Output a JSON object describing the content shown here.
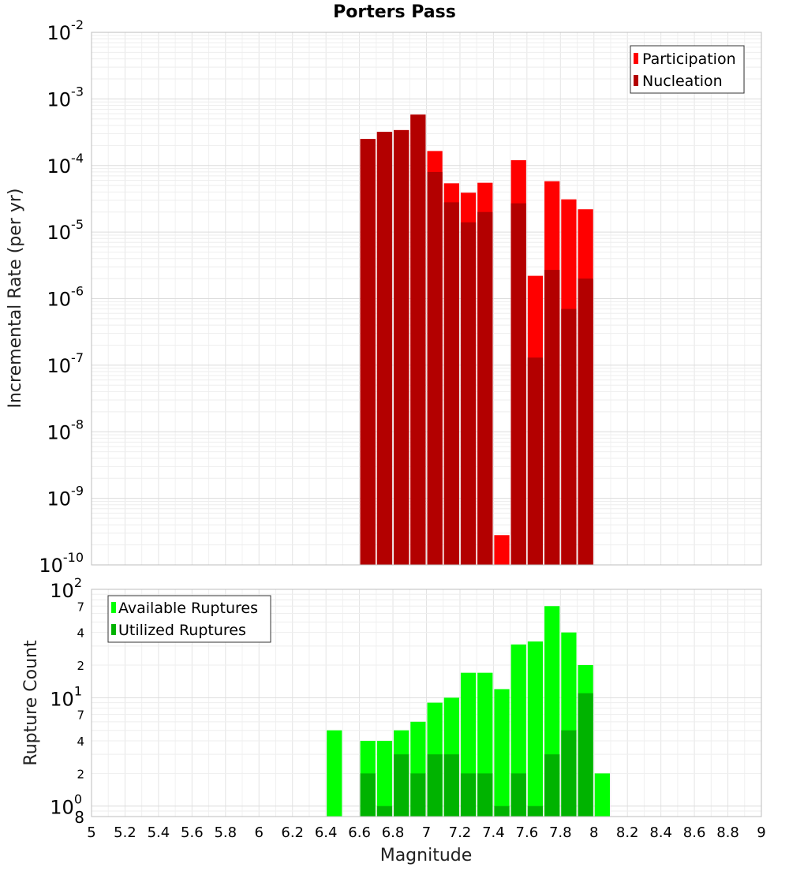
{
  "chart_data": [
    {
      "type": "bar",
      "title": "Porters Pass",
      "xlabel": "",
      "ylabel": "Incremental Rate (per yr)",
      "xlim": [
        5,
        9
      ],
      "ylim": [
        1e-10,
        0.01
      ],
      "y_scale": "log",
      "grid": true,
      "legend_position": "top-right",
      "y_tick_labels": [
        {
          "base": "10",
          "exp": "-10",
          "value": 1e-10
        },
        {
          "base": "10",
          "exp": "-9",
          "value": 1e-09
        },
        {
          "base": "10",
          "exp": "-8",
          "value": 1e-08
        },
        {
          "base": "10",
          "exp": "-7",
          "value": 1e-07
        },
        {
          "base": "10",
          "exp": "-6",
          "value": 1e-06
        },
        {
          "base": "10",
          "exp": "-5",
          "value": 1e-05
        },
        {
          "base": "10",
          "exp": "-4",
          "value": 0.0001
        },
        {
          "base": "10",
          "exp": "-3",
          "value": 0.001
        },
        {
          "base": "10",
          "exp": "-2",
          "value": 0.01
        }
      ],
      "bar_width": 0.1,
      "x": [
        6.65,
        6.75,
        6.85,
        6.95,
        7.05,
        7.15,
        7.25,
        7.35,
        7.45,
        7.55,
        7.65,
        7.75,
        7.85,
        7.95
      ],
      "series": [
        {
          "name": "Participation",
          "color": "#ff0000",
          "values": [
            0.00025,
            0.00032,
            0.00034,
            0.00058,
            0.000165,
            5.4e-05,
            3.9e-05,
            5.5e-05,
            2.8e-10,
            0.00012,
            2.2e-06,
            5.8e-05,
            3.1e-05,
            2.2e-05
          ]
        },
        {
          "name": "Nucleation",
          "color": "#b30000",
          "values": [
            0.00025,
            0.00032,
            0.00034,
            0.00058,
            8e-05,
            2.8e-05,
            1.4e-05,
            2e-05,
            null,
            2.7e-05,
            1.3e-07,
            2.7e-06,
            7e-07,
            2e-06
          ]
        }
      ]
    },
    {
      "type": "bar",
      "title": "",
      "xlabel": "Magnitude",
      "ylabel": "Rupture Count",
      "xlim": [
        5,
        9
      ],
      "ylim": [
        0.8,
        100
      ],
      "y_scale": "log",
      "grid": true,
      "legend_position": "top-left",
      "x_ticks": [
        "5",
        "5.2",
        "5.4",
        "5.6",
        "5.8",
        "6",
        "6.2",
        "6.4",
        "6.6",
        "6.8",
        "7",
        "7.2",
        "7.4",
        "7.6",
        "7.8",
        "8",
        "8.2",
        "8.4",
        "8.6",
        "8.8",
        "9"
      ],
      "y_major_labels": [
        {
          "base": "10",
          "exp": "0",
          "value": 1
        },
        {
          "base": "10",
          "exp": "1",
          "value": 10
        },
        {
          "base": "10",
          "exp": "2",
          "value": 100
        }
      ],
      "y_minor_labels": [
        {
          "label": "8",
          "value": 0.8
        },
        {
          "label": "2",
          "value": 2
        },
        {
          "label": "4",
          "value": 4
        },
        {
          "label": "7",
          "value": 7
        },
        {
          "label": "2",
          "value": 20
        },
        {
          "label": "4",
          "value": 40
        },
        {
          "label": "7",
          "value": 70
        }
      ],
      "bar_width": 0.1,
      "x": [
        6.45,
        6.65,
        6.75,
        6.85,
        6.95,
        7.05,
        7.15,
        7.25,
        7.35,
        7.45,
        7.55,
        7.65,
        7.75,
        7.85,
        7.95,
        8.05
      ],
      "series": [
        {
          "name": "Available Ruptures",
          "color": "#00ff00",
          "values": [
            5,
            4,
            4,
            5,
            6,
            9,
            10,
            17,
            17,
            12,
            31,
            33,
            70,
            40,
            20,
            2
          ]
        },
        {
          "name": "Utilized Ruptures",
          "color": "#00b300",
          "values": [
            null,
            2,
            1,
            3,
            2,
            3,
            3,
            2,
            2,
            1,
            2,
            1,
            3,
            5,
            11,
            null
          ]
        }
      ]
    }
  ]
}
